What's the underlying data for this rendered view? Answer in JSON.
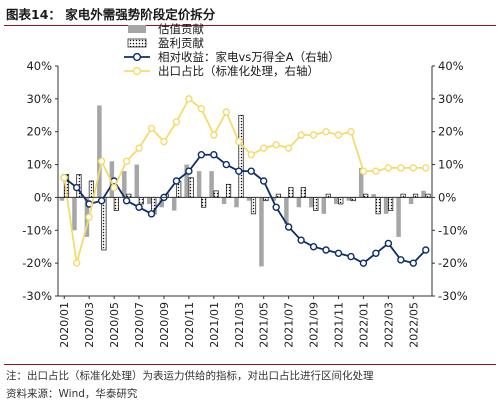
{
  "title": "图表14：  家电外需强势阶段定价拆分",
  "note": "注：出口占比（标准化处理）为表运力供给的指标，对出口占比进行区间化处理",
  "source": "资料来源：Wind，华泰研究",
  "chart_data": {
    "type": "bar+line",
    "legend_placement": "top-center",
    "left_axis": {
      "ylim": [
        -30,
        40
      ],
      "ticks": [
        "40%",
        "30%",
        "20%",
        "10%",
        "0%",
        "-10%",
        "-20%",
        "-30%"
      ]
    },
    "right_axis": {
      "ylim": [
        -30,
        40
      ],
      "ticks": [
        "40%",
        "30%",
        "20%",
        "10%",
        "0%",
        "-10%",
        "-20%",
        "-30%"
      ]
    },
    "x_tick_labels": [
      "2020/01",
      "2020/03",
      "2020/05",
      "2020/07",
      "2020/09",
      "2020/11",
      "2021/01",
      "2021/03",
      "2021/05",
      "2021/07",
      "2021/09",
      "2021/11",
      "2022/01",
      "2022/03",
      "2022/05"
    ],
    "x_count": 30,
    "series": [
      {
        "name": "估值贡献",
        "kind": "bar",
        "axis": "left",
        "color": "#a6a6a6",
        "values": [
          -1,
          -10,
          -12,
          28,
          11,
          8,
          10,
          -2,
          -3,
          -4,
          10,
          8,
          8,
          -2,
          -3,
          -1,
          -21,
          -1,
          -8,
          -3,
          -3,
          -5,
          -2,
          -1,
          9,
          1,
          -5,
          -12,
          -2,
          2
        ]
      },
      {
        "name": "盈利贡献",
        "kind": "bar",
        "axis": "left",
        "color": "#ffffff",
        "pattern": "dots",
        "values": [
          7,
          7,
          5,
          -16,
          -4,
          1,
          -2,
          -5,
          1,
          5,
          6,
          -3,
          2,
          4,
          25,
          -5,
          -1,
          1,
          3,
          3,
          -4,
          1,
          -2,
          -1,
          1,
          -5,
          -4,
          1,
          1,
          1
        ]
      },
      {
        "name": "相对收益：家电vs万得全A（右轴）",
        "kind": "line",
        "axis": "right",
        "color": "#0d2d6b",
        "marker": "circle",
        "values": [
          6,
          3,
          -2,
          -1,
          5,
          -1,
          -3,
          -5,
          0,
          5,
          8,
          13,
          13,
          10,
          8,
          8,
          5,
          -3,
          -9,
          -13,
          -15,
          -16,
          -17,
          -18,
          -20,
          -17,
          -14,
          -19,
          -20,
          -16
        ]
      },
      {
        "name": "出口占比（标准化处理，右轴）",
        "kind": "line",
        "axis": "right",
        "color": "#f4db6e",
        "marker": "circle",
        "values": [
          6,
          -20,
          -6,
          11,
          3,
          11,
          15,
          21,
          17,
          23,
          30,
          27,
          19,
          26,
          17,
          13,
          15,
          16,
          15,
          19,
          19,
          20,
          19,
          20,
          8,
          8,
          9,
          9,
          9,
          9
        ]
      }
    ]
  }
}
